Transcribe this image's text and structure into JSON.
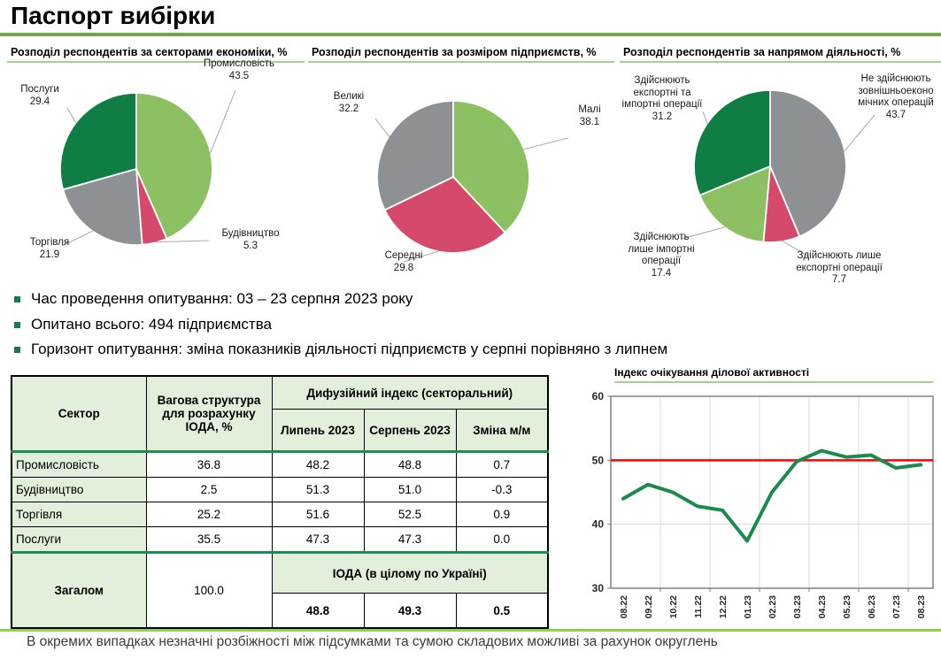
{
  "page": {
    "title": "Паспорт вибірки",
    "footnote": "В окремих випадках незначні розбіжності між підсумками та сумою складових можливі за рахунок округлень"
  },
  "bullets": [
    "Час проведення опитування:  03 – 23 серпня 2023 року",
    "Опитано всього: 494 підприємства",
    "Горизонт опитування:  зміна показників діяльності підприємств у серпні порівняно з липнем"
  ],
  "colors": {
    "accent_rule_green": "#6CA944",
    "accent_light_green": "#92D050",
    "underline_green": "#A9D18E",
    "pie_light_green": "#8DC063",
    "pie_dark_green": "#0E7E45",
    "pie_gray": "#8D9194",
    "pie_pink": "#D5496A",
    "table_header_bg": "#E2EFDA",
    "table_separator_green": "#1E8C50",
    "line_green": "#1B8A4E",
    "refline_red": "#FF0000"
  },
  "chart_data": [
    {
      "type": "pie",
      "title": "Розподіл респондентів за секторами економіки, %",
      "slices": [
        {
          "label": "Промисловість",
          "value": "43.5",
          "color": "#8DC063"
        },
        {
          "label": "Будівництво",
          "value": "5.3",
          "color": "#D5496A"
        },
        {
          "label": "Торгівля",
          "value": "21.9",
          "color": "#8D9194"
        },
        {
          "label": "Послуги",
          "value": "29.4",
          "color": "#0E7E45"
        }
      ]
    },
    {
      "type": "pie",
      "title": "Розподіл респондентів за розміром підприємств, %",
      "slices": [
        {
          "label": "Малі",
          "value": "38.1",
          "color": "#8DC063"
        },
        {
          "label": "Середні",
          "value": "29.8",
          "color": "#D5496A"
        },
        {
          "label": "Великі",
          "value": "32.2",
          "color": "#8D9194"
        }
      ]
    },
    {
      "type": "pie",
      "title": "Розподіл респондентів за напрямом діяльності, %",
      "slices": [
        {
          "label": "Не здійснюють зовнішньоеконо мічних операцій",
          "value": "43.7",
          "color": "#8D9194"
        },
        {
          "label": "Здійснюють лише експортні операції",
          "value": "7.7",
          "color": "#D5496A"
        },
        {
          "label": "Здійснюють лише імпортні операції",
          "value": "17.4",
          "color": "#8DC063"
        },
        {
          "label": "Здійснюють експортні та імпортні операції",
          "value": "31.2",
          "color": "#0E7E45"
        }
      ]
    },
    {
      "type": "line",
      "title": "Індекс очікування ділової активності",
      "x": [
        "08.22",
        "09.22",
        "10.22",
        "11.22",
        "12.22",
        "01.23",
        "02.23",
        "03.23",
        "04.23",
        "05.23",
        "06.23",
        "07.23",
        "08.23"
      ],
      "values": [
        44.0,
        46.2,
        45.0,
        42.8,
        42.2,
        37.4,
        45.0,
        49.8,
        51.5,
        50.5,
        50.8,
        48.8,
        49.3
      ],
      "ylim": [
        30,
        60
      ],
      "yticks": [
        30,
        40,
        50,
        60
      ],
      "refline": 50,
      "grid": true,
      "legend": "none"
    }
  ],
  "table": {
    "header": {
      "sector": "Сектор",
      "weight": "Вагова структура для розрахунку ІОДА, %",
      "diffusion": "Дифузійний індекс (секторальний)",
      "jul": "Липень 2023",
      "aug": "Серпень 2023",
      "chg": "Зміна м/м"
    },
    "rows": [
      [
        "Промисловість",
        "36.8",
        "48.2",
        "48.8",
        "0.7"
      ],
      [
        "Будівництво",
        "2.5",
        "51.3",
        "51.0",
        "-0.3"
      ],
      [
        "Торгівля",
        "25.2",
        "51.6",
        "52.5",
        "0.9"
      ],
      [
        "Послуги",
        "35.5",
        "47.3",
        "47.3",
        "0.0"
      ]
    ],
    "total": {
      "label": "Загалом",
      "weight": "100.0",
      "ioda_label": "ІОДА (в цілому по Україні)",
      "values": [
        "48.8",
        "49.3",
        "0.5"
      ]
    }
  }
}
